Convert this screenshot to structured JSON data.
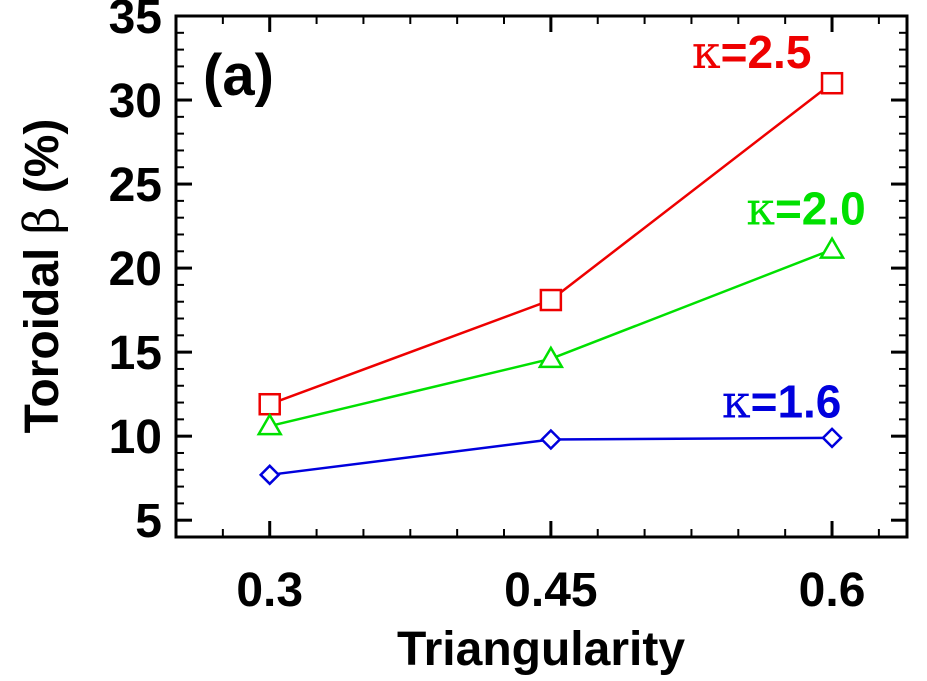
{
  "chart_data": {
    "type": "line",
    "panel_label": "(a)",
    "xlabel": "Triangularity",
    "ylabel": {
      "prefix": "Toroidal ",
      "symbol": "β",
      "suffix": " (%)"
    },
    "xlim": [
      0.25,
      0.64
    ],
    "ylim": [
      4,
      35
    ],
    "x_ticks": [
      {
        "value": 0.3,
        "label": "0.3"
      },
      {
        "value": 0.45,
        "label": "0.45"
      },
      {
        "value": 0.6,
        "label": "0.6"
      }
    ],
    "x_minor_ticks": [
      0.25,
      0.275,
      0.325,
      0.35,
      0.375,
      0.4,
      0.425,
      0.475,
      0.5,
      0.525,
      0.55,
      0.575,
      0.625
    ],
    "y_ticks": [
      {
        "value": 5,
        "label": "5"
      },
      {
        "value": 10,
        "label": "10"
      },
      {
        "value": 15,
        "label": "15"
      },
      {
        "value": 20,
        "label": "20"
      },
      {
        "value": 25,
        "label": "25"
      },
      {
        "value": 30,
        "label": "30"
      },
      {
        "value": 35,
        "label": "35"
      }
    ],
    "y_minor_ticks": [
      6,
      7,
      8,
      9,
      11,
      12,
      13,
      14,
      16,
      17,
      18,
      19,
      21,
      22,
      23,
      24,
      26,
      27,
      28,
      29,
      31,
      32,
      33,
      34
    ],
    "grid": false,
    "x": [
      0.3,
      0.45,
      0.6
    ],
    "series": [
      {
        "key": "k25",
        "label": {
          "symbol": "κ",
          "text": "=2.5"
        },
        "values": [
          11.9,
          18.1,
          31.0
        ],
        "color": "#ee0000",
        "marker": "square",
        "label_anchor": "end",
        "label_at": {
          "x": 0.589,
          "y": 31.9
        }
      },
      {
        "key": "k20",
        "label": {
          "symbol": "κ",
          "text": "=2.0"
        },
        "values": [
          10.6,
          14.6,
          21.1
        ],
        "color": "#00e000",
        "marker": "triangle",
        "label_anchor": "end",
        "label_at": {
          "x": 0.618,
          "y": 22.6
        }
      },
      {
        "key": "k16",
        "label": {
          "symbol": "κ",
          "text": "=1.6"
        },
        "values": [
          7.7,
          9.8,
          9.9
        ],
        "color": "#0000dd",
        "marker": "diamond",
        "label_anchor": "end",
        "label_at": {
          "x": 0.605,
          "y": 11.1
        }
      }
    ]
  }
}
